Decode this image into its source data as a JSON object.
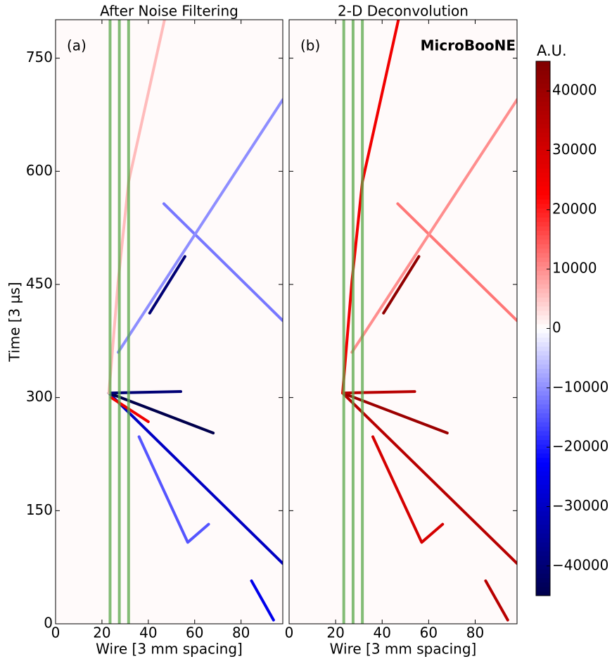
{
  "chart_data": [
    {
      "type": "heatmap",
      "title": "After Noise Filtering",
      "label": "(a)",
      "xlabel": "Wire [3 mm spacing]",
      "ylabel": "Time [3 μs]",
      "xlim": [
        0,
        98
      ],
      "ylim": [
        0,
        801
      ],
      "xticks": [
        0,
        20,
        40,
        60,
        80
      ],
      "yticks": [
        0,
        150,
        300,
        450,
        600,
        750
      ],
      "wire_lines": [
        23.5,
        27.5,
        31.5
      ],
      "wire_line_color": "#5aa84a",
      "tracks": [
        {
          "wire": [
            23,
            98
          ],
          "time": [
            306,
            80
          ],
          "value": -30000
        },
        {
          "wire": [
            23,
            68
          ],
          "time": [
            306,
            253
          ],
          "value": -45000
        },
        {
          "wire": [
            23,
            54
          ],
          "time": [
            306,
            308
          ],
          "value": -40000
        },
        {
          "wire": [
            23,
            27,
            31.5,
            47
          ],
          "time": [
            306,
            454,
            586,
            801
          ],
          "value": 6000
        },
        {
          "wire": [
            46.7,
            98
          ],
          "time": [
            557,
            402
          ],
          "value": -12000
        },
        {
          "wire": [
            27,
            98
          ],
          "time": [
            360,
            695
          ],
          "value": -10000
        },
        {
          "wire": [
            40.6,
            55.8
          ],
          "time": [
            412,
            487
          ],
          "value": -40000
        },
        {
          "wire": [
            36,
            57,
            66
          ],
          "time": [
            248,
            108,
            132
          ],
          "value": -15000
        },
        {
          "wire": [
            84.5,
            94
          ],
          "time": [
            57,
            5
          ],
          "value": -25000
        },
        {
          "wire": [
            24,
            40
          ],
          "time": [
            300,
            268
          ],
          "value": 25000
        }
      ]
    },
    {
      "type": "heatmap",
      "title": "2-D Deconvolution",
      "label": "(b)",
      "watermark": "MicroBooNE",
      "xlabel": "Wire [3 mm spacing]",
      "xlim": [
        0,
        98
      ],
      "ylim": [
        0,
        801
      ],
      "xticks": [
        0,
        20,
        40,
        60,
        80
      ],
      "yticks": [
        0,
        150,
        300,
        450,
        600,
        750
      ],
      "wire_lines": [
        23.5,
        27.5,
        31.5
      ],
      "wire_line_color": "#5aa84a",
      "tracks": [
        {
          "wire": [
            23,
            98
          ],
          "time": [
            306,
            80
          ],
          "value": 35000
        },
        {
          "wire": [
            23,
            68
          ],
          "time": [
            306,
            253
          ],
          "value": 40000
        },
        {
          "wire": [
            23,
            54
          ],
          "time": [
            306,
            308
          ],
          "value": 35000
        },
        {
          "wire": [
            23,
            27,
            31.5,
            47
          ],
          "time": [
            306,
            454,
            586,
            801
          ],
          "value": 25000
        },
        {
          "wire": [
            46.7,
            98
          ],
          "time": [
            557,
            402
          ],
          "value": 12000
        },
        {
          "wire": [
            27,
            98
          ],
          "time": [
            360,
            695
          ],
          "value": 10000
        },
        {
          "wire": [
            40.6,
            55.8
          ],
          "time": [
            412,
            487
          ],
          "value": 42000
        },
        {
          "wire": [
            36,
            57,
            66
          ],
          "time": [
            248,
            108,
            132
          ],
          "value": 30000
        },
        {
          "wire": [
            84.5,
            94
          ],
          "time": [
            57,
            5
          ],
          "value": 35000
        }
      ]
    }
  ],
  "colorbar": {
    "label": "A.U.",
    "clim": [
      -45000,
      45000
    ],
    "ticks": [
      {
        "value": -40000,
        "label": "−40000"
      },
      {
        "value": -30000,
        "label": "−30000"
      },
      {
        "value": -20000,
        "label": "−20000"
      },
      {
        "value": -10000,
        "label": "−10000"
      },
      0,
      10000,
      20000,
      30000,
      40000
    ]
  }
}
